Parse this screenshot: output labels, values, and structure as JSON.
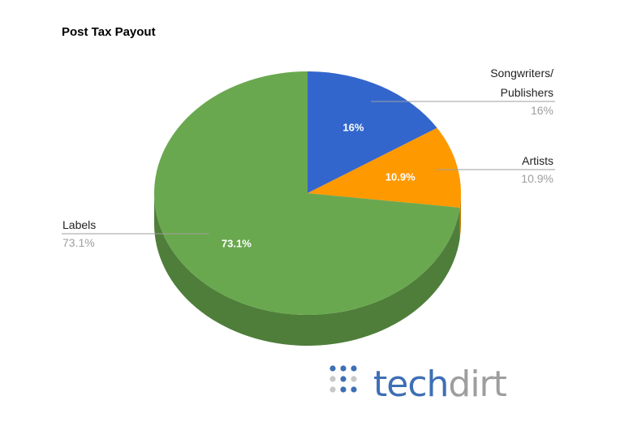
{
  "chart_data": {
    "type": "pie",
    "title": "Post Tax Payout",
    "three_d": true,
    "slices": [
      {
        "name": [
          "Songwriters/",
          "Publishers"
        ],
        "value": 16,
        "value_label": "16%",
        "legend_pct": "16%",
        "color": "#3366cc",
        "side_color": "#2a55aa"
      },
      {
        "name": [
          "Artists"
        ],
        "value": 10.9,
        "value_label": "10.9%",
        "legend_pct": "10.9%",
        "color": "#ff9900",
        "side_color": "#cc7a00"
      },
      {
        "name": [
          "Labels"
        ],
        "value": 73.1,
        "value_label": "73.1%",
        "legend_pct": "73.1%",
        "color": "#6aa84f",
        "side_color": "#4f7e3a"
      }
    ]
  },
  "logo": {
    "part1": "tech",
    "part2": "dirt",
    "color1": "#3e6fb5",
    "color2": "#9e9e9e"
  }
}
